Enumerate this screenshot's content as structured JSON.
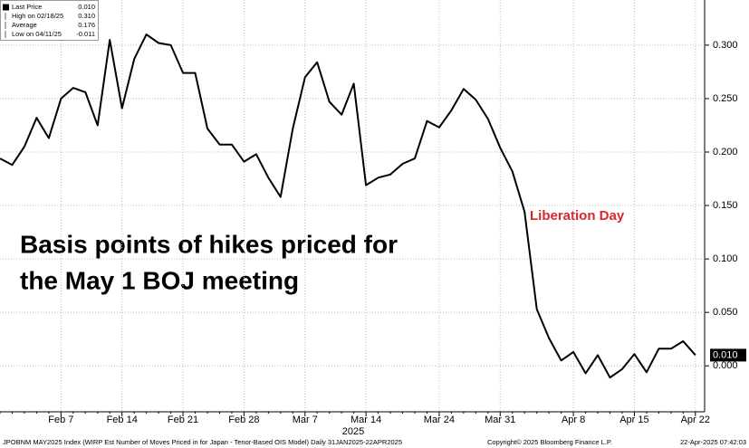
{
  "chart_data": {
    "type": "line",
    "annotation": "Basis points of hikes priced for the May 1 BOJ meeting",
    "event_label": "Liberation Day",
    "year_label": "2025",
    "footer_left": "JPOBNM MAY2025 Index (WIRP Est Number of Moves Priced in for Japan - Tenor-Based OIS Model)  Daily 31JAN2025-22APR2025",
    "footer_center": "Copyright© 2025 Bloomberg Finance L.P.",
    "footer_right": "22-Apr-2025 07:42:03",
    "legend_box": [
      {
        "label": "Last Price",
        "value": "0.010"
      },
      {
        "label": "High on 02/18/25",
        "value": "0.310"
      },
      {
        "label": "Average",
        "value": "0.176"
      },
      {
        "label": "Low on 04/11/25",
        "value": "-0.011"
      }
    ],
    "categories": [
      null,
      null,
      null,
      null,
      null,
      "Feb 7",
      null,
      null,
      null,
      null,
      "Feb 14",
      null,
      null,
      null,
      null,
      "Feb 21",
      null,
      null,
      null,
      null,
      "Feb 28",
      null,
      null,
      null,
      null,
      "Mar 7",
      null,
      null,
      null,
      null,
      "Mar 14",
      null,
      null,
      null,
      null,
      null,
      "Mar 24",
      null,
      null,
      null,
      null,
      "Mar 31",
      null,
      null,
      null,
      null,
      null,
      "Apr 8",
      null,
      null,
      null,
      null,
      "Apr 15",
      null,
      null,
      null,
      null,
      "Apr 22"
    ],
    "series": [
      {
        "name": "Last Price",
        "color": "#000000",
        "values": [
          0.194,
          0.188,
          0.205,
          0.232,
          0.213,
          0.25,
          0.26,
          0.256,
          0.225,
          0.305,
          0.241,
          0.287,
          0.31,
          0.302,
          0.3,
          0.274,
          0.274,
          0.222,
          0.207,
          0.207,
          0.191,
          0.198,
          0.176,
          0.158,
          0.222,
          0.27,
          0.284,
          0.247,
          0.235,
          0.264,
          0.169,
          0.176,
          0.179,
          0.189,
          0.194,
          0.229,
          0.223,
          0.239,
          0.259,
          0.249,
          0.231,
          0.204,
          0.182,
          0.144,
          0.053,
          0.026,
          0.005,
          0.013,
          -0.007,
          0.01,
          -0.011,
          -0.003,
          0.011,
          -0.006,
          0.016,
          0.016,
          0.023,
          0.01
        ]
      }
    ],
    "ylim": [
      -0.043,
      0.338
    ],
    "yticks": [
      {
        "value": 0,
        "label": "0.000"
      },
      {
        "value": 0.05,
        "label": "0.050"
      },
      {
        "value": 0.1,
        "label": "0.100"
      },
      {
        "value": 0.15,
        "label": "0.150"
      },
      {
        "value": 0.2,
        "label": "0.200"
      },
      {
        "value": 0.25,
        "label": "0.250"
      },
      {
        "value": 0.3,
        "label": "0.300"
      }
    ],
    "grid": true
  }
}
